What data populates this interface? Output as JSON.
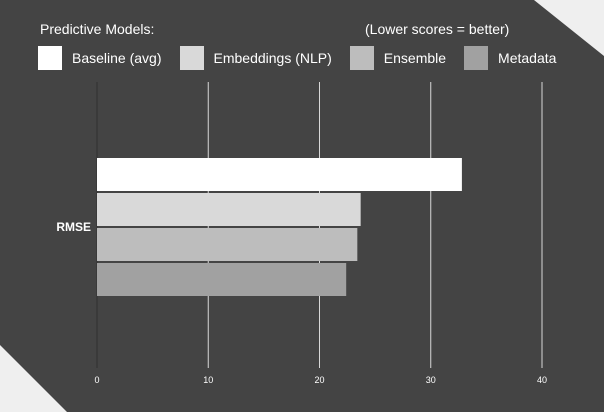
{
  "legend": {
    "title": "Predictive Models:",
    "note": "(Lower scores = better)",
    "items": [
      {
        "label": "Baseline (avg)",
        "color": "#ffffff"
      },
      {
        "label": "Embeddings (NLP)",
        "color": "#d9d9d9"
      },
      {
        "label": "Ensemble",
        "color": "#bdbdbd"
      },
      {
        "label": "Metadata",
        "color": "#a1a1a1"
      }
    ]
  },
  "chart_data": {
    "type": "bar",
    "orientation": "horizontal",
    "categories": [
      "RMSE"
    ],
    "series": [
      {
        "name": "Baseline (avg)",
        "values": [
          32.8
        ],
        "color": "#ffffff"
      },
      {
        "name": "Embeddings (NLP)",
        "values": [
          23.7
        ],
        "color": "#d9d9d9"
      },
      {
        "name": "Ensemble",
        "values": [
          23.4
        ],
        "color": "#bdbdbd"
      },
      {
        "name": "Metadata",
        "values": [
          22.4
        ],
        "color": "#a1a1a1"
      }
    ],
    "xlim": [
      0,
      40
    ],
    "xticks": [
      "0",
      "10",
      "20",
      "30",
      "40"
    ],
    "grid": true,
    "legend_position": "top"
  }
}
